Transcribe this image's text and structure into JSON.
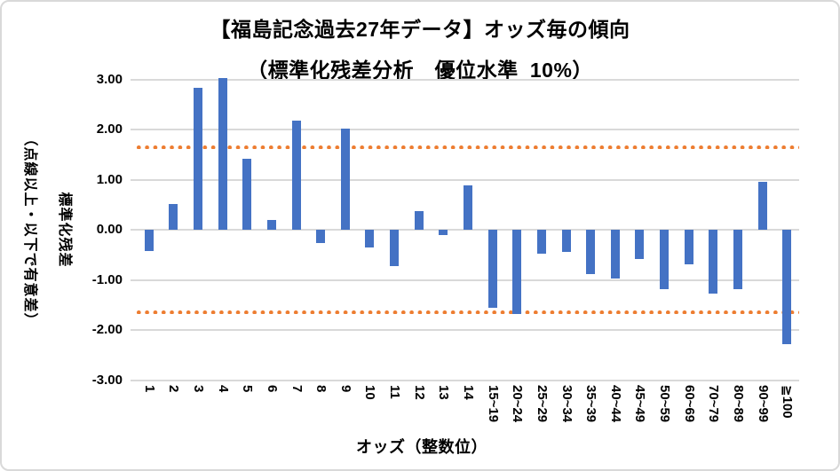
{
  "chart_data": {
    "type": "bar",
    "title": "【福島記念過去27年データ】オッズ毎の傾向",
    "subtitle": "（標準化残差分析　優位水準_10%）",
    "xlabel": "オッズ（整数位）",
    "ylabel_line1": "標準化残差",
    "ylabel_line2": "（点線以上・以下で有意差）",
    "categories": [
      "1",
      "2",
      "3",
      "4",
      "5",
      "6",
      "7",
      "8",
      "9",
      "10",
      "11",
      "12",
      "13",
      "14",
      "15~19",
      "20~24",
      "25~29",
      "30~34",
      "35~39",
      "40~44",
      "45~49",
      "50~59",
      "60~69",
      "70~79",
      "80~89",
      "90~99",
      "≧100"
    ],
    "values": [
      -0.42,
      0.51,
      2.83,
      3.03,
      1.42,
      0.19,
      2.17,
      -0.26,
      2.02,
      -0.35,
      -0.72,
      0.38,
      -0.11,
      0.89,
      -1.56,
      -1.69,
      -0.47,
      -0.45,
      -0.88,
      -0.97,
      -0.58,
      -1.18,
      -0.69,
      -1.27,
      -1.18,
      0.95,
      -2.29
    ],
    "ylim": [
      -3,
      3
    ],
    "y_tick_values": [
      3,
      2,
      1,
      0,
      -1,
      -2,
      -3
    ],
    "y_tick_labels": [
      "3.00",
      "2.00",
      "1.00",
      "0.00",
      "-1.00",
      "-2.00",
      "-3.00"
    ],
    "reference_lines": {
      "upper": 1.645,
      "lower": -1.645,
      "style": "dotted"
    },
    "grid": true,
    "legend": false,
    "colors": {
      "bar": "#4472C4",
      "reference_line": "#ED7D31",
      "gridline": "#D9D9D9",
      "text": "#000000"
    }
  }
}
